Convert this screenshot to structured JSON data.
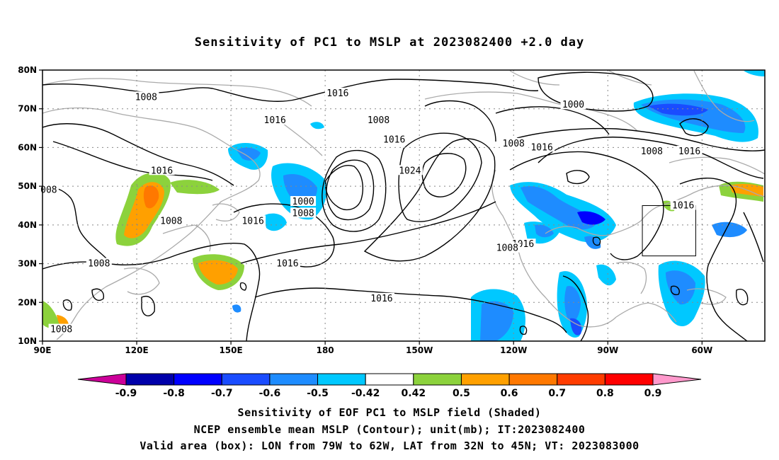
{
  "title": "Sensitivity of PC1 to MSLP at 2023082400 +2.0 day",
  "map": {
    "lat_ticks": [
      "10N",
      "20N",
      "30N",
      "40N",
      "50N",
      "60N",
      "70N",
      "80N"
    ],
    "lon_ticks": [
      "90E",
      "120E",
      "150E",
      "180",
      "150W",
      "120W",
      "90W",
      "60W"
    ],
    "lat_range": [
      10,
      80
    ],
    "lon_range_east": [
      90,
      320
    ],
    "valid_box": {
      "lon": [
        -79,
        -62
      ],
      "lat": [
        32,
        45
      ]
    }
  },
  "contour_labels": [
    {
      "text": "1008",
      "lon": 123,
      "lat": 73
    },
    {
      "text": "1016",
      "lon": 184,
      "lat": 74
    },
    {
      "text": "1016",
      "lon": 164,
      "lat": 67
    },
    {
      "text": "1008",
      "lon": 197,
      "lat": 67
    },
    {
      "text": "1000",
      "lon": 259,
      "lat": 71
    },
    {
      "text": "1016",
      "lon": 128,
      "lat": 54
    },
    {
      "text": "008",
      "lon": 92,
      "lat": 49
    },
    {
      "text": "1016",
      "lon": 202,
      "lat": 62
    },
    {
      "text": "1024",
      "lon": 207,
      "lat": 54
    },
    {
      "text": "1008",
      "lon": 240,
      "lat": 61
    },
    {
      "text": "1016",
      "lon": 249,
      "lat": 60
    },
    {
      "text": "1008",
      "lon": 284,
      "lat": 59
    },
    {
      "text": "1016",
      "lon": 296,
      "lat": 59
    },
    {
      "text": "1000",
      "lon": 173,
      "lat": 46
    },
    {
      "text": "1008",
      "lon": 173,
      "lat": 43
    },
    {
      "text": "1016",
      "lon": 157,
      "lat": 41
    },
    {
      "text": "1008",
      "lon": 131,
      "lat": 41
    },
    {
      "text": "1016",
      "lon": 294,
      "lat": 45
    },
    {
      "text": "1016",
      "lon": 243,
      "lat": 35
    },
    {
      "text": "1008",
      "lon": 238,
      "lat": 34
    },
    {
      "text": "1016",
      "lon": 168,
      "lat": 30
    },
    {
      "text": "1008",
      "lon": 108,
      "lat": 30
    },
    {
      "text": "1016",
      "lon": 198,
      "lat": 21
    },
    {
      "text": "1008",
      "lon": 96,
      "lat": 13
    }
  ],
  "colorbar": {
    "labels": [
      "-0.9",
      "-0.8",
      "-0.7",
      "-0.6",
      "-0.5",
      "-0.42",
      "0.42",
      "0.5",
      "0.6",
      "0.7",
      "0.8",
      "0.9"
    ],
    "colors": [
      "#cc0099",
      "#0000aa",
      "#0000ff",
      "#1a4cff",
      "#1e8cff",
      "#00c8ff",
      "#ffffff",
      "#8cd23c",
      "#ffa000",
      "#ff7800",
      "#ff3c00",
      "#ff0000",
      "#ff99cc"
    ]
  },
  "captions": [
    "Sensitivity of EOF PC1 to MSLP field (Shaded)",
    "NCEP ensemble mean MSLP (Contour); unit(mb); IT:2023082400",
    "Valid area (box): LON from 79W to 62W, LAT from 32N to 45N; VT: 2023083000"
  ]
}
